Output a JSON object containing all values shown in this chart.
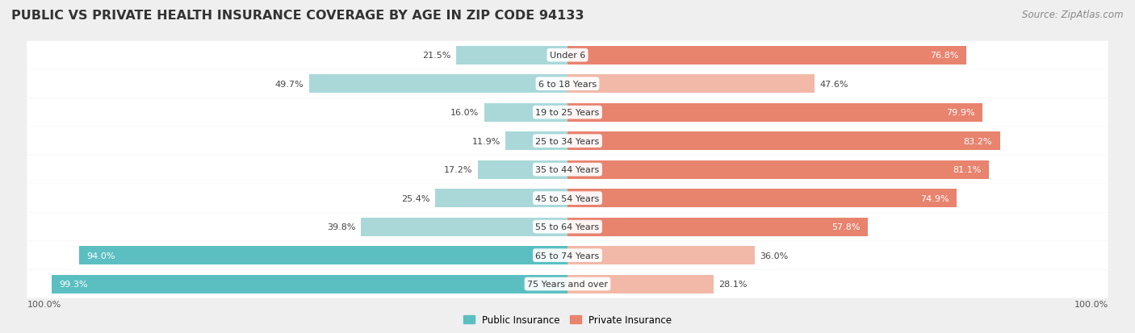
{
  "title": "PUBLIC VS PRIVATE HEALTH INSURANCE COVERAGE BY AGE IN ZIP CODE 94133",
  "source": "Source: ZipAtlas.com",
  "categories": [
    "Under 6",
    "6 to 18 Years",
    "19 to 25 Years",
    "25 to 34 Years",
    "35 to 44 Years",
    "45 to 54 Years",
    "55 to 64 Years",
    "65 to 74 Years",
    "75 Years and over"
  ],
  "public_values": [
    21.5,
    49.7,
    16.0,
    11.9,
    17.2,
    25.4,
    39.8,
    94.0,
    99.3
  ],
  "private_values": [
    76.8,
    47.6,
    79.9,
    83.2,
    81.1,
    74.9,
    57.8,
    36.0,
    28.1
  ],
  "public_color": "#5bbfc2",
  "private_color": "#e8836e",
  "public_color_light": "#aad8d9",
  "private_color_light": "#f2b8a8",
  "background_color": "#efefef",
  "bar_bg_color": "#ffffff",
  "title_fontsize": 11.5,
  "source_fontsize": 8.5,
  "label_fontsize": 8,
  "value_fontsize": 8,
  "legend_fontsize": 8.5,
  "axis_label": "100.0%"
}
